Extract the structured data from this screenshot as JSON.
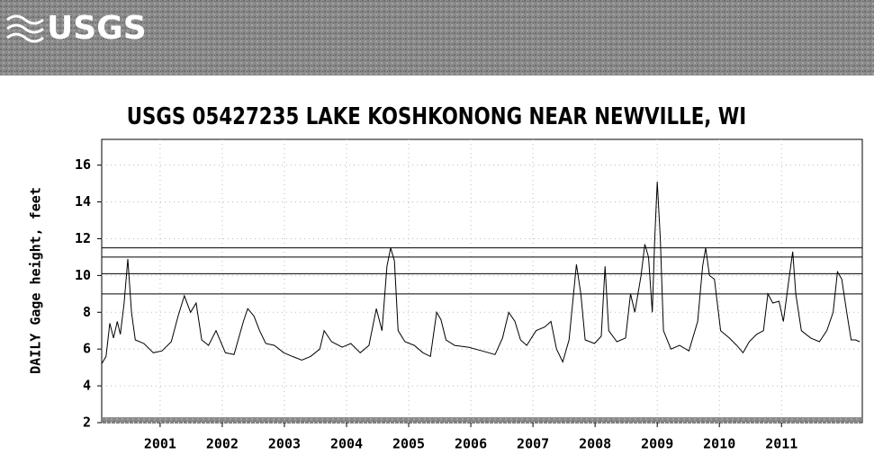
{
  "header": {
    "logo": "USGS"
  },
  "chart_data": {
    "type": "line",
    "title": "USGS 05427235 LAKE KOSHKONONG NEAR NEWVILLE, WI",
    "y_label": "DAILY Gage height, feet",
    "color": "#000000",
    "x": [
      2000.06,
      2000.13,
      2000.19,
      2000.25,
      2000.31,
      2000.36,
      2000.42,
      2000.48,
      2000.54,
      2000.6,
      2000.74,
      2000.89,
      2001.03,
      2001.18,
      2001.29,
      2001.39,
      2001.49,
      2001.58,
      2001.67,
      2001.78,
      2001.9,
      2002.05,
      2002.19,
      2002.34,
      2002.41,
      2002.51,
      2002.6,
      2002.7,
      2002.84,
      2002.99,
      2003.13,
      2003.28,
      2003.42,
      2003.57,
      2003.64,
      2003.76,
      2003.93,
      2004.07,
      2004.22,
      2004.36,
      2004.48,
      2004.57,
      2004.65,
      2004.71,
      2004.77,
      2004.83,
      2004.94,
      2005.09,
      2005.23,
      2005.35,
      2005.45,
      2005.52,
      2005.6,
      2005.74,
      2005.96,
      2006.18,
      2006.39,
      2006.51,
      2006.61,
      2006.71,
      2006.8,
      2006.9,
      2007.05,
      2007.19,
      2007.29,
      2007.38,
      2007.48,
      2007.58,
      2007.7,
      2007.77,
      2007.84,
      2007.99,
      2008.1,
      2008.16,
      2008.22,
      2008.35,
      2008.49,
      2008.57,
      2008.64,
      2008.74,
      2008.8,
      2008.86,
      2008.92,
      2008.96,
      2009.0,
      2009.05,
      2009.1,
      2009.22,
      2009.36,
      2009.51,
      2009.65,
      2009.73,
      2009.78,
      2009.84,
      2009.92,
      2010.02,
      2010.16,
      2010.28,
      2010.38,
      2010.48,
      2010.6,
      2010.71,
      2010.78,
      2010.86,
      2010.96,
      2011.03,
      2011.12,
      2011.18,
      2011.23,
      2011.32,
      2011.47,
      2011.61,
      2011.73,
      2011.83,
      2011.9,
      2011.97,
      2012.05,
      2012.12,
      2012.19,
      2012.26
    ],
    "values": [
      5.2,
      5.6,
      7.4,
      6.6,
      7.5,
      6.8,
      8.5,
      10.9,
      8.0,
      6.5,
      6.3,
      5.8,
      5.9,
      6.4,
      7.8,
      8.9,
      8.0,
      8.5,
      6.5,
      6.2,
      7.0,
      5.8,
      5.7,
      7.5,
      8.2,
      7.8,
      7.0,
      6.3,
      6.2,
      5.8,
      5.6,
      5.4,
      5.6,
      6.0,
      7.0,
      6.4,
      6.1,
      6.3,
      5.8,
      6.2,
      8.2,
      7.0,
      10.5,
      11.5,
      10.8,
      7.0,
      6.4,
      6.2,
      5.8,
      5.6,
      8.0,
      7.6,
      6.5,
      6.2,
      6.1,
      5.9,
      5.7,
      6.6,
      8.0,
      7.5,
      6.5,
      6.2,
      7.0,
      7.2,
      7.5,
      6.0,
      5.3,
      6.5,
      10.6,
      9.0,
      6.5,
      6.3,
      6.7,
      10.5,
      7.0,
      6.4,
      6.6,
      9.0,
      8.0,
      10.0,
      11.7,
      11.0,
      8.0,
      12.0,
      15.1,
      12.0,
      7.0,
      6.0,
      6.2,
      5.9,
      7.5,
      10.5,
      11.5,
      10.0,
      9.8,
      7.0,
      6.6,
      6.2,
      5.8,
      6.4,
      6.8,
      7.0,
      9.0,
      8.5,
      8.6,
      7.5,
      9.8,
      11.3,
      9.0,
      7.0,
      6.6,
      6.4,
      7.0,
      8.0,
      10.2,
      9.8,
      8.0,
      6.5,
      6.5,
      6.4
    ],
    "reference_lines": [
      11.5,
      11.0,
      10.1,
      9.0
    ],
    "xlim": [
      2000.06,
      2012.3
    ],
    "xticks": [
      2001,
      2002,
      2003,
      2004,
      2005,
      2006,
      2007,
      2008,
      2009,
      2010,
      2011
    ],
    "ylim": [
      2,
      17.4
    ],
    "yticks": [
      2,
      4,
      6,
      8,
      10,
      12,
      14,
      16
    ],
    "grid": true
  }
}
